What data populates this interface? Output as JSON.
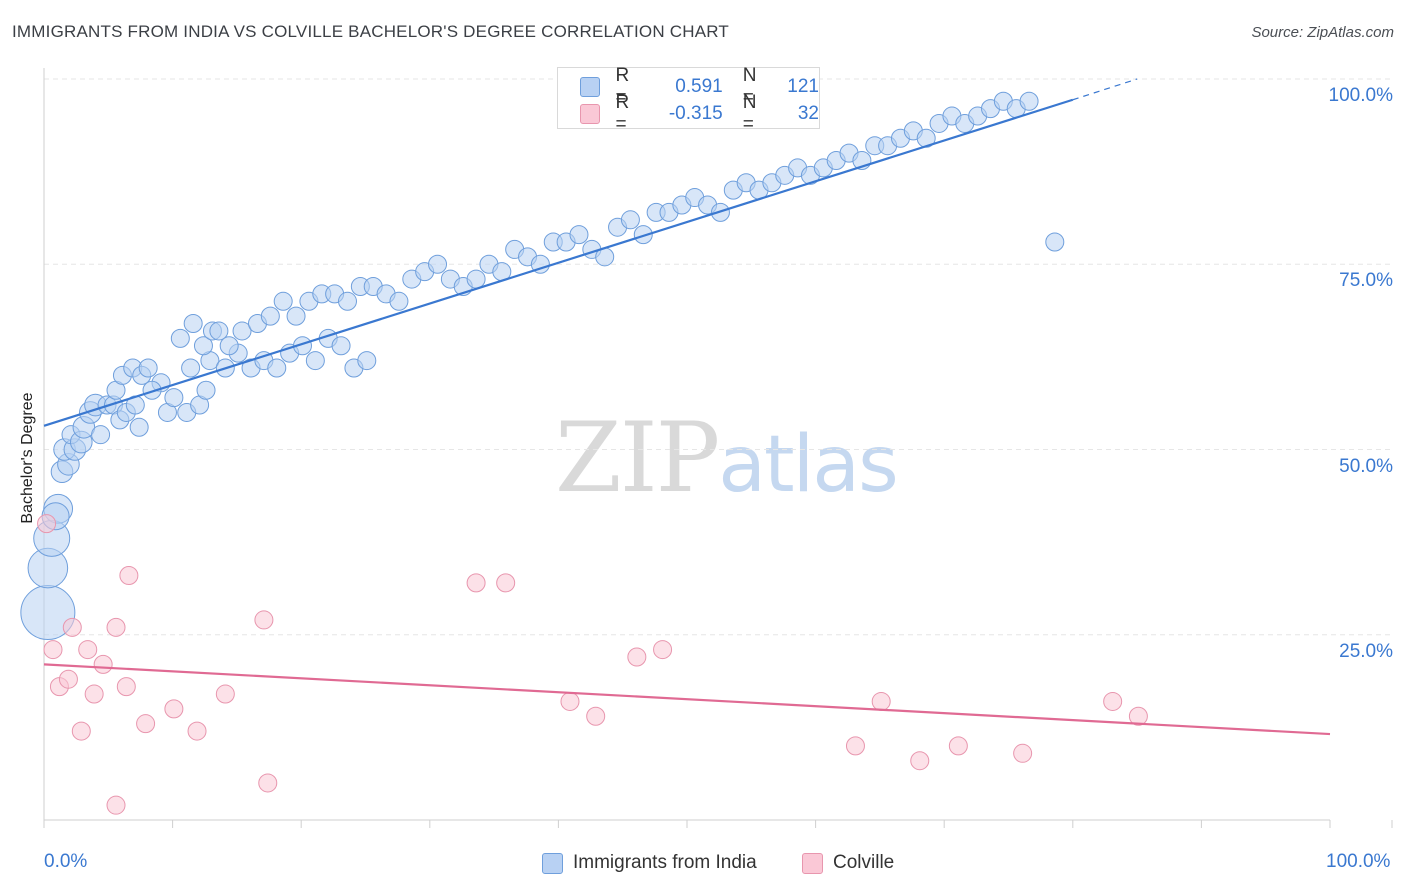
{
  "header": {
    "title": "IMMIGRANTS FROM INDIA VS COLVILLE BACHELOR'S DEGREE CORRELATION CHART",
    "source": "Source: ZipAtlas.com"
  },
  "watermark": {
    "zip": "ZIP",
    "atlas": "atlas"
  },
  "legend": {
    "r_label": "R =",
    "n_label": "N =",
    "rows": [
      {
        "r": "0.591",
        "n": "121",
        "fill": "#b8d1f3",
        "stroke": "#6f9fdc"
      },
      {
        "r": "-0.315",
        "n": "32",
        "fill": "#fac8d6",
        "stroke": "#e896ae"
      }
    ]
  },
  "chart_data": {
    "type": "scatter",
    "title": "IMMIGRANTS FROM INDIA VS COLVILLE BACHELOR'S DEGREE CORRELATION CHART",
    "xlabel": "",
    "ylabel": "Bachelor's Degree",
    "xlim": [
      0,
      100
    ],
    "ylim": [
      0,
      100
    ],
    "x_tick_labels": [
      "0.0%",
      "100.0%"
    ],
    "y_tick_labels": [
      "25.0%",
      "50.0%",
      "75.0%",
      "100.0%"
    ],
    "y_ticks": [
      25,
      50,
      75,
      100
    ],
    "colors": {
      "blue": "#3a78d0",
      "pink": "#e06a93",
      "blue_fill": "#b8d1f3",
      "pink_fill": "#fac8d6",
      "grid": "#e6e6e6"
    },
    "series": [
      {
        "name": "Immigrants from India",
        "color": "#3a78d0",
        "trend": {
          "x0": 0,
          "y0": 53.2,
          "x1": 80,
          "y1": 97.2,
          "dash_to_x": 85,
          "dash_to_y": 100
        },
        "points": [
          [
            0.3,
            28,
            3
          ],
          [
            0.3,
            34,
            2.2
          ],
          [
            0.6,
            38,
            2
          ],
          [
            1.1,
            42,
            1.6
          ],
          [
            0.9,
            41,
            1.5
          ],
          [
            1.4,
            47,
            1.2
          ],
          [
            1.9,
            48,
            1.2
          ],
          [
            1.6,
            50,
            1.2
          ],
          [
            2.4,
            50,
            1.2
          ],
          [
            2.1,
            52,
            1
          ],
          [
            2.9,
            51,
            1.2
          ],
          [
            3.1,
            53,
            1.2
          ],
          [
            4.4,
            52,
            1
          ],
          [
            3.6,
            55,
            1.2
          ],
          [
            4.0,
            56,
            1.2
          ],
          [
            4.9,
            56,
            1
          ],
          [
            5.4,
            56,
            1
          ],
          [
            5.9,
            54,
            1
          ],
          [
            6.4,
            55,
            1
          ],
          [
            7.1,
            56,
            1
          ],
          [
            5.6,
            58,
            1
          ],
          [
            6.1,
            60,
            1
          ],
          [
            6.9,
            61,
            1
          ],
          [
            7.6,
            60,
            1
          ],
          [
            8.1,
            61,
            1
          ],
          [
            9.1,
            59,
            1
          ],
          [
            8.4,
            58,
            1
          ],
          [
            7.4,
            53,
            1
          ],
          [
            9.6,
            55,
            1
          ],
          [
            10.1,
            57,
            1
          ],
          [
            11.1,
            55,
            1
          ],
          [
            12.1,
            56,
            1
          ],
          [
            12.6,
            58,
            1
          ],
          [
            11.4,
            61,
            1
          ],
          [
            12.9,
            62,
            1
          ],
          [
            14.1,
            61,
            1
          ],
          [
            15.1,
            63,
            1
          ],
          [
            16.1,
            61,
            1
          ],
          [
            17.1,
            62,
            1
          ],
          [
            18.1,
            61,
            1
          ],
          [
            19.1,
            63,
            1
          ],
          [
            20.1,
            64,
            1
          ],
          [
            21.1,
            62,
            1
          ],
          [
            22.1,
            65,
            1
          ],
          [
            23.1,
            64,
            1
          ],
          [
            24.1,
            61,
            1
          ],
          [
            25.1,
            62,
            1
          ],
          [
            10.6,
            65,
            1
          ],
          [
            11.6,
            67,
            1
          ],
          [
            12.4,
            64,
            1
          ],
          [
            13.1,
            66,
            1
          ],
          [
            13.6,
            66,
            1
          ],
          [
            14.4,
            64,
            1
          ],
          [
            15.4,
            66,
            1
          ],
          [
            16.6,
            67,
            1
          ],
          [
            17.6,
            68,
            1
          ],
          [
            18.6,
            70,
            1
          ],
          [
            19.6,
            68,
            1
          ],
          [
            20.6,
            70,
            1
          ],
          [
            21.6,
            71,
            1
          ],
          [
            22.6,
            71,
            1
          ],
          [
            23.6,
            70,
            1
          ],
          [
            24.6,
            72,
            1
          ],
          [
            25.6,
            72,
            1
          ],
          [
            26.6,
            71,
            1
          ],
          [
            27.6,
            70,
            1
          ],
          [
            28.6,
            73,
            1
          ],
          [
            29.6,
            74,
            1
          ],
          [
            30.6,
            75,
            1
          ],
          [
            31.6,
            73,
            1
          ],
          [
            32.6,
            72,
            1
          ],
          [
            33.6,
            73,
            1
          ],
          [
            34.6,
            75,
            1
          ],
          [
            35.6,
            74,
            1
          ],
          [
            36.6,
            77,
            1
          ],
          [
            37.6,
            76,
            1
          ],
          [
            38.6,
            75,
            1
          ],
          [
            39.6,
            78,
            1
          ],
          [
            40.6,
            78,
            1
          ],
          [
            41.6,
            79,
            1
          ],
          [
            42.6,
            77,
            1
          ],
          [
            43.6,
            76,
            1
          ],
          [
            44.6,
            80,
            1
          ],
          [
            45.6,
            81,
            1
          ],
          [
            46.6,
            79,
            1
          ],
          [
            47.6,
            82,
            1
          ],
          [
            48.6,
            82,
            1
          ],
          [
            49.6,
            83,
            1
          ],
          [
            50.6,
            84,
            1
          ],
          [
            51.6,
            83,
            1
          ],
          [
            52.6,
            82,
            1
          ],
          [
            53.6,
            85,
            1
          ],
          [
            54.6,
            86,
            1
          ],
          [
            55.6,
            85,
            1
          ],
          [
            56.6,
            86,
            1
          ],
          [
            57.6,
            87,
            1
          ],
          [
            58.6,
            88,
            1
          ],
          [
            59.6,
            87,
            1
          ],
          [
            60.6,
            88,
            1
          ],
          [
            61.6,
            89,
            1
          ],
          [
            62.6,
            90,
            1
          ],
          [
            63.6,
            89,
            1
          ],
          [
            64.6,
            91,
            1
          ],
          [
            65.6,
            91,
            1
          ],
          [
            66.6,
            92,
            1
          ],
          [
            67.6,
            93,
            1
          ],
          [
            68.6,
            92,
            1
          ],
          [
            69.6,
            94,
            1
          ],
          [
            70.6,
            95,
            1
          ],
          [
            71.6,
            94,
            1
          ],
          [
            72.6,
            95,
            1
          ],
          [
            73.6,
            96,
            1
          ],
          [
            74.6,
            97,
            1
          ],
          [
            75.6,
            96,
            1
          ],
          [
            76.6,
            97,
            1
          ],
          [
            78.6,
            78,
            1
          ]
        ]
      },
      {
        "name": "Colville",
        "color": "#e06a93",
        "trend": {
          "x0": 0,
          "y0": 21.0,
          "x1": 100,
          "y1": 11.6
        },
        "points": [
          [
            0.2,
            40,
            1
          ],
          [
            0.7,
            23,
            1
          ],
          [
            1.2,
            18,
            1
          ],
          [
            1.9,
            19,
            1
          ],
          [
            2.2,
            26,
            1
          ],
          [
            2.9,
            12,
            1
          ],
          [
            3.4,
            23,
            1
          ],
          [
            3.9,
            17,
            1
          ],
          [
            4.6,
            21,
            1
          ],
          [
            5.6,
            26,
            1
          ],
          [
            6.4,
            18,
            1
          ],
          [
            6.6,
            33,
            1
          ],
          [
            5.6,
            2,
            1
          ],
          [
            7.9,
            13,
            1
          ],
          [
            10.1,
            15,
            1
          ],
          [
            11.9,
            12,
            1
          ],
          [
            14.1,
            17,
            1
          ],
          [
            17.1,
            27,
            1
          ],
          [
            17.4,
            5,
            1
          ],
          [
            33.6,
            32,
            1
          ],
          [
            35.9,
            32,
            1
          ],
          [
            40.9,
            16,
            1
          ],
          [
            42.9,
            14,
            1
          ],
          [
            46.1,
            22,
            1
          ],
          [
            48.1,
            23,
            1
          ],
          [
            63.1,
            10,
            1
          ],
          [
            65.1,
            16,
            1
          ],
          [
            68.1,
            8,
            1
          ],
          [
            71.1,
            10,
            1
          ],
          [
            76.1,
            9,
            1
          ],
          [
            83.1,
            16,
            1
          ],
          [
            85.1,
            14,
            1
          ]
        ]
      }
    ]
  },
  "legend_bottom": {
    "items": [
      {
        "label": "Immigrants from India",
        "fill": "#b8d1f3",
        "stroke": "#6f9fdc"
      },
      {
        "label": "Colville",
        "fill": "#fac8d6",
        "stroke": "#e896ae"
      }
    ]
  }
}
